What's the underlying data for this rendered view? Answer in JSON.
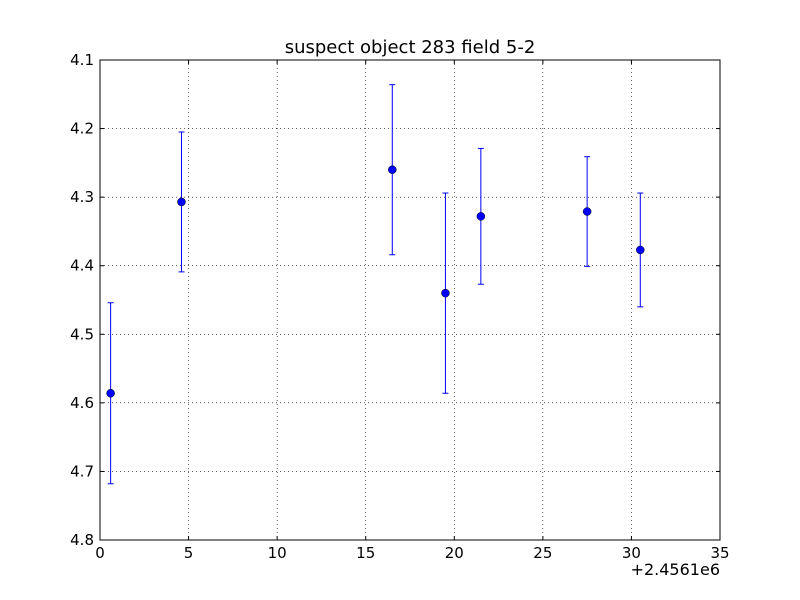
{
  "chart_data": {
    "type": "scatter",
    "title": "suspect object 283 field 5-2",
    "xlabel": "",
    "ylabel": "",
    "x_offset_label": "+2.4561e6",
    "xlim": [
      0,
      35
    ],
    "ylim": [
      4.8,
      4.1
    ],
    "y_inverted": true,
    "grid": true,
    "x_ticks": [
      0,
      5,
      10,
      15,
      20,
      25,
      30,
      35
    ],
    "x_tick_labels": [
      "0",
      "5",
      "10",
      "15",
      "20",
      "25",
      "30",
      "35"
    ],
    "y_ticks": [
      4.1,
      4.2,
      4.3,
      4.4,
      4.5,
      4.6,
      4.7,
      4.8
    ],
    "y_tick_labels": [
      "4.1",
      "4.2",
      "4.3",
      "4.4",
      "4.5",
      "4.6",
      "4.7",
      "4.8"
    ],
    "marker_color": "#0000ff",
    "points": [
      {
        "x": 0.6,
        "y": 4.586,
        "yerr": 0.132
      },
      {
        "x": 4.6,
        "y": 4.307,
        "yerr": 0.102
      },
      {
        "x": 16.5,
        "y": 4.26,
        "yerr": 0.124
      },
      {
        "x": 19.5,
        "y": 4.44,
        "yerr": 0.146
      },
      {
        "x": 21.5,
        "y": 4.328,
        "yerr": 0.099
      },
      {
        "x": 27.5,
        "y": 4.321,
        "yerr": 0.08
      },
      {
        "x": 30.5,
        "y": 4.377,
        "yerr": 0.083
      }
    ]
  }
}
